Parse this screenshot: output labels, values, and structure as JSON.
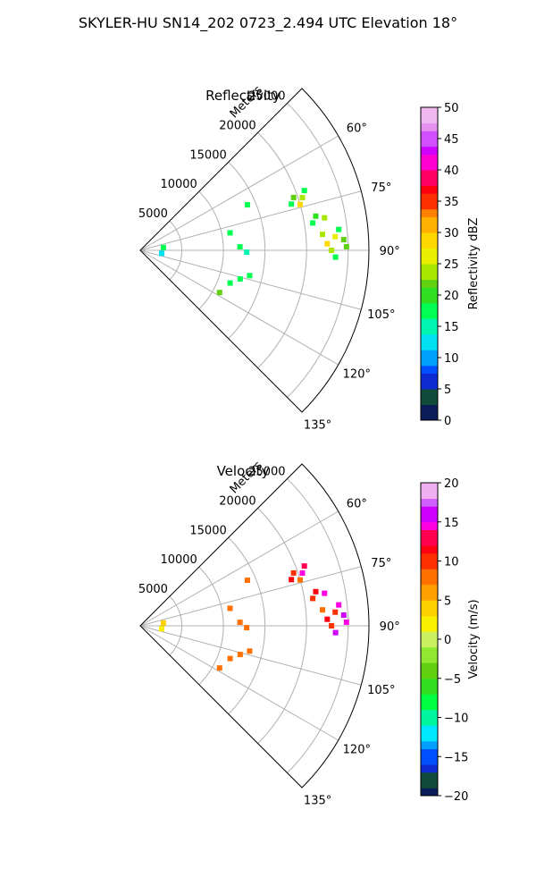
{
  "title": "SKYLER-HU  SN14_202  0723_2.494 UTC Elevation 18°",
  "chart_data": [
    {
      "type": "heatmap",
      "projection": "polar-sector",
      "title": "Reflectivity",
      "range_axis_label": "Meters",
      "range_ticks": [
        5000,
        10000,
        15000,
        20000,
        25000
      ],
      "range_tick_labels": [
        "5000",
        "10000",
        "15000",
        "20000",
        "25000"
      ],
      "rlim": [
        0,
        27500
      ],
      "azimuth_lim": [
        45,
        135
      ],
      "azimuth_ticks": [
        60,
        75,
        90,
        105,
        120,
        135
      ],
      "azimuth_tick_labels": [
        "60°",
        "75°",
        "90°",
        "105°",
        "120°",
        "135°"
      ],
      "grid": true,
      "colorbar": {
        "label": "Reflectivity dBZ",
        "range": [
          0,
          50
        ],
        "ticks": [
          0,
          5,
          10,
          15,
          20,
          25,
          30,
          35,
          40,
          45,
          50
        ],
        "tick_labels": [
          "0",
          "5",
          "10",
          "15",
          "20",
          "25",
          "30",
          "35",
          "40",
          "45",
          "50"
        ]
      },
      "echoes": [
        {
          "az": 71,
          "r": 19500,
          "value": 22
        },
        {
          "az": 72,
          "r": 20500,
          "value": 24
        },
        {
          "az": 73,
          "r": 19000,
          "value": 18
        },
        {
          "az": 70,
          "r": 21000,
          "value": 16
        },
        {
          "az": 74,
          "r": 20000,
          "value": 27
        },
        {
          "az": 79,
          "r": 21500,
          "value": 20
        },
        {
          "az": 80,
          "r": 22500,
          "value": 24
        },
        {
          "az": 81,
          "r": 21000,
          "value": 17
        },
        {
          "az": 85,
          "r": 22000,
          "value": 23
        },
        {
          "az": 86,
          "r": 23500,
          "value": 26
        },
        {
          "az": 87,
          "r": 24500,
          "value": 21
        },
        {
          "az": 84,
          "r": 24000,
          "value": 17
        },
        {
          "az": 88,
          "r": 22500,
          "value": 28
        },
        {
          "az": 90,
          "r": 23000,
          "value": 24
        },
        {
          "az": 89,
          "r": 24800,
          "value": 22
        },
        {
          "az": 92,
          "r": 23500,
          "value": 18
        },
        {
          "az": 67,
          "r": 14000,
          "value": 16
        },
        {
          "az": 79,
          "r": 11000,
          "value": 17
        },
        {
          "az": 88,
          "r": 12000,
          "value": 18
        },
        {
          "az": 91,
          "r": 12800,
          "value": 15
        },
        {
          "az": 103,
          "r": 13500,
          "value": 17
        },
        {
          "az": 106,
          "r": 12500,
          "value": 18
        },
        {
          "az": 110,
          "r": 11500,
          "value": 16
        },
        {
          "az": 118,
          "r": 10800,
          "value": 22
        },
        {
          "az": 83,
          "r": 2800,
          "value": 16
        },
        {
          "az": 98,
          "r": 2600,
          "value": 11
        }
      ]
    },
    {
      "type": "heatmap",
      "projection": "polar-sector",
      "title": "Velocity",
      "range_axis_label": "Meters",
      "range_ticks": [
        5000,
        10000,
        15000,
        20000,
        25000
      ],
      "range_tick_labels": [
        "5000",
        "10000",
        "15000",
        "20000",
        "25000"
      ],
      "rlim": [
        0,
        27500
      ],
      "azimuth_lim": [
        45,
        135
      ],
      "azimuth_ticks": [
        60,
        75,
        90,
        105,
        120,
        135
      ],
      "azimuth_tick_labels": [
        "60°",
        "75°",
        "90°",
        "105°",
        "120°",
        "135°"
      ],
      "grid": true,
      "colorbar": {
        "label": "Velocity (m/s)",
        "range": [
          -20,
          20
        ],
        "ticks": [
          -20,
          -15,
          -10,
          -5,
          0,
          5,
          10,
          15,
          20
        ],
        "tick_labels": [
          "−20",
          "−15",
          "−10",
          "−5",
          "0",
          "5",
          "10",
          "15",
          "20"
        ]
      },
      "echoes": [
        {
          "az": 71,
          "r": 19500,
          "value": 9
        },
        {
          "az": 72,
          "r": 20500,
          "value": 15
        },
        {
          "az": 73,
          "r": 19000,
          "value": 11
        },
        {
          "az": 70,
          "r": 21000,
          "value": 13
        },
        {
          "az": 74,
          "r": 20000,
          "value": 8
        },
        {
          "az": 79,
          "r": 21500,
          "value": 11
        },
        {
          "az": 80,
          "r": 22500,
          "value": 15
        },
        {
          "az": 81,
          "r": 21000,
          "value": 9
        },
        {
          "az": 85,
          "r": 22000,
          "value": 8
        },
        {
          "az": 86,
          "r": 23500,
          "value": 10
        },
        {
          "az": 87,
          "r": 24500,
          "value": 16
        },
        {
          "az": 84,
          "r": 24000,
          "value": 14
        },
        {
          "az": 88,
          "r": 22500,
          "value": 11
        },
        {
          "az": 90,
          "r": 23000,
          "value": 9
        },
        {
          "az": 89,
          "r": 24800,
          "value": 15
        },
        {
          "az": 92,
          "r": 23500,
          "value": 16
        },
        {
          "az": 67,
          "r": 14000,
          "value": 8
        },
        {
          "az": 79,
          "r": 11000,
          "value": 8
        },
        {
          "az": 88,
          "r": 12000,
          "value": 7
        },
        {
          "az": 91,
          "r": 12800,
          "value": 8
        },
        {
          "az": 103,
          "r": 13500,
          "value": 8
        },
        {
          "az": 106,
          "r": 12500,
          "value": 7
        },
        {
          "az": 110,
          "r": 11500,
          "value": 8
        },
        {
          "az": 118,
          "r": 10800,
          "value": 8
        },
        {
          "az": 83,
          "r": 2800,
          "value": 3
        },
        {
          "az": 98,
          "r": 2600,
          "value": 2
        }
      ]
    }
  ]
}
